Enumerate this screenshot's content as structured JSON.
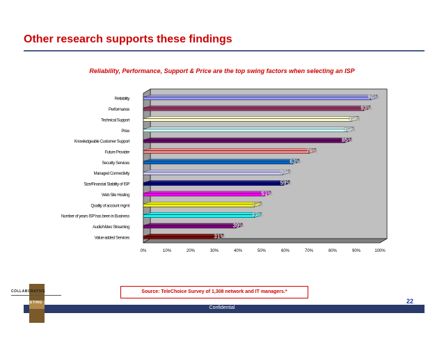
{
  "slide": {
    "title": "Other research supports these findings",
    "subtitle": "Reliability, Performance, Support & Price are the top swing factors when selecting an ISP",
    "source": "Source:  TeleChoice Survey of 1,308 network and IT managers.*",
    "page_number": "22",
    "footer": "Confidential",
    "logo_line1": "COLLABORATIVE",
    "logo_line2": "MARKETING"
  },
  "colors": {
    "title": "#cc0000",
    "rule": "#4a5a8a",
    "footer_bar": "#2a3a6a"
  },
  "chart_data": {
    "type": "bar",
    "orientation": "horizontal",
    "title": "Reliability, Performance, Support & Price are the top swing factors when selecting an ISP",
    "xlabel": "",
    "ylabel": "",
    "xlim": [
      0,
      100
    ],
    "ticks": [
      "0%",
      "10%",
      "20%",
      "30%",
      "40%",
      "50%",
      "60%",
      "70%",
      "80%",
      "90%",
      "100%"
    ],
    "grid": false,
    "categories": [
      "Reliability",
      "Performance",
      "Technical Support",
      "Price",
      "Knowledgeable Customer Support",
      "Future Provider",
      "Security Services",
      "Managed Connectivity",
      "Size/Financial Stability of ISP",
      "Web Site Hosting",
      "Quality of account mgmt",
      "Number of years ISP has been in Business",
      "Audio/Video Streaming",
      "Value-added Services"
    ],
    "values": [
      96,
      93,
      88,
      86,
      85,
      70,
      63,
      59,
      59,
      51,
      47,
      47,
      39,
      31
    ],
    "value_labels": [
      "96%",
      "93%",
      "88%",
      "86%",
      "85%",
      "70%",
      "63%",
      "59%",
      "59%",
      "51%",
      "47%",
      "47%",
      "39%",
      "31%"
    ],
    "bar_colors": [
      "#9999ff",
      "#993366",
      "#ffffcc",
      "#ccffff",
      "#660066",
      "#ff8080",
      "#0066cc",
      "#ccccff",
      "#000080",
      "#ff00ff",
      "#ffff00",
      "#00ffff",
      "#800080",
      "#800000"
    ]
  }
}
